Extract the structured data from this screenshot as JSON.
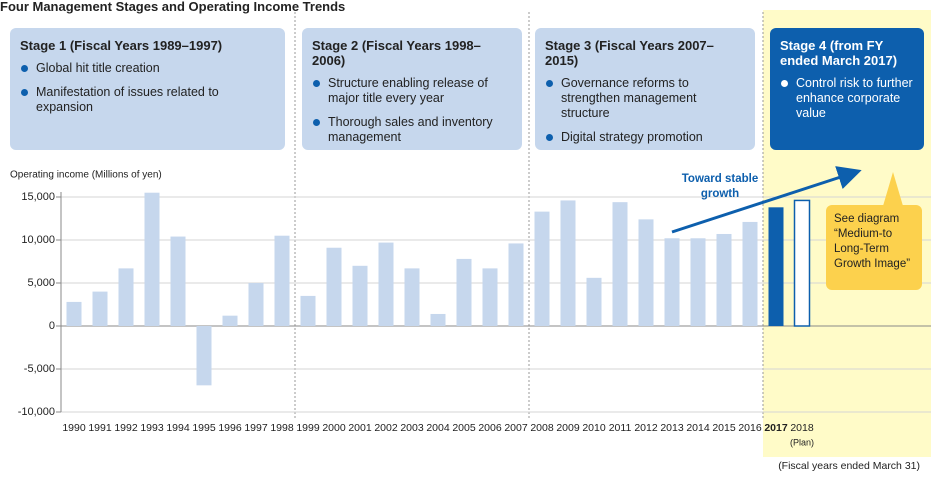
{
  "title": "Four Management Stages and Operating Income Trends",
  "stages": [
    {
      "title": "Stage 1 (Fiscal Years 1989–1997)",
      "bullets": [
        "Global hit title creation",
        "Manifestation of issues related to expansion"
      ]
    },
    {
      "title": "Stage 2 (Fiscal Years 1998–2006)",
      "bullets": [
        "Structure enabling release of major title every year",
        "Thorough sales and inventory management"
      ]
    },
    {
      "title": "Stage 3 (Fiscal Years 2007–2015)",
      "bullets": [
        "Governance reforms to strengthen management structure",
        "Digital strategy promotion"
      ]
    },
    {
      "title": "Stage 4 (from FY ended March 2017)",
      "bullets": [
        "Control risk to further enhance corporate value"
      ]
    }
  ],
  "chart_data": {
    "type": "bar",
    "y_axis_label": "Operating income (Millions of yen)",
    "categories": [
      "1990",
      "1991",
      "1992",
      "1993",
      "1994",
      "1995",
      "1996",
      "1997",
      "1998",
      "1999",
      "2000",
      "2001",
      "2002",
      "2003",
      "2004",
      "2005",
      "2006",
      "2007",
      "2008",
      "2009",
      "2010",
      "2011",
      "2012",
      "2013",
      "2014",
      "2015",
      "2016",
      "2017",
      "2018"
    ],
    "values": [
      2800,
      4000,
      6700,
      15500,
      10400,
      -6900,
      1200,
      5000,
      10500,
      3500,
      9100,
      7000,
      9700,
      6700,
      1400,
      7800,
      6700,
      9600,
      13300,
      14600,
      5600,
      14400,
      12400,
      10200,
      10200,
      10700,
      12100,
      13800,
      14600
    ],
    "colors": [
      "#c6d7ed",
      "#c6d7ed",
      "#c6d7ed",
      "#c6d7ed",
      "#c6d7ed",
      "#c6d7ed",
      "#c6d7ed",
      "#c6d7ed",
      "#c6d7ed",
      "#c6d7ed",
      "#c6d7ed",
      "#c6d7ed",
      "#c6d7ed",
      "#c6d7ed",
      "#c6d7ed",
      "#c6d7ed",
      "#c6d7ed",
      "#c6d7ed",
      "#c6d7ed",
      "#c6d7ed",
      "#c6d7ed",
      "#c6d7ed",
      "#c6d7ed",
      "#c6d7ed",
      "#c6d7ed",
      "#c6d7ed",
      "#c6d7ed",
      "#0d5fad",
      "#ffffff"
    ],
    "strokes": [
      "none",
      "none",
      "none",
      "none",
      "none",
      "none",
      "none",
      "none",
      "none",
      "none",
      "none",
      "none",
      "none",
      "none",
      "none",
      "none",
      "none",
      "none",
      "none",
      "none",
      "none",
      "none",
      "none",
      "none",
      "none",
      "none",
      "none",
      "none",
      "#0d5fad"
    ],
    "highlight_index": 27,
    "plan_label": "(Plan)",
    "ylim": [
      -10000,
      15000
    ],
    "yticks": [
      {
        "value": -10000,
        "label": "-10,000"
      },
      {
        "value": -5000,
        "label": "-5,000"
      },
      0,
      {
        "value": 5000,
        "label": "5,000"
      },
      {
        "value": 10000,
        "label": "10,000"
      },
      {
        "value": 15000,
        "label": "15,000"
      }
    ],
    "grid": true,
    "annotations": {
      "trend": "Toward stable growth",
      "callout": "See diagram “Medium-to Long-Term Growth Image”",
      "footnote": "(Fiscal years ended March 31)"
    }
  }
}
